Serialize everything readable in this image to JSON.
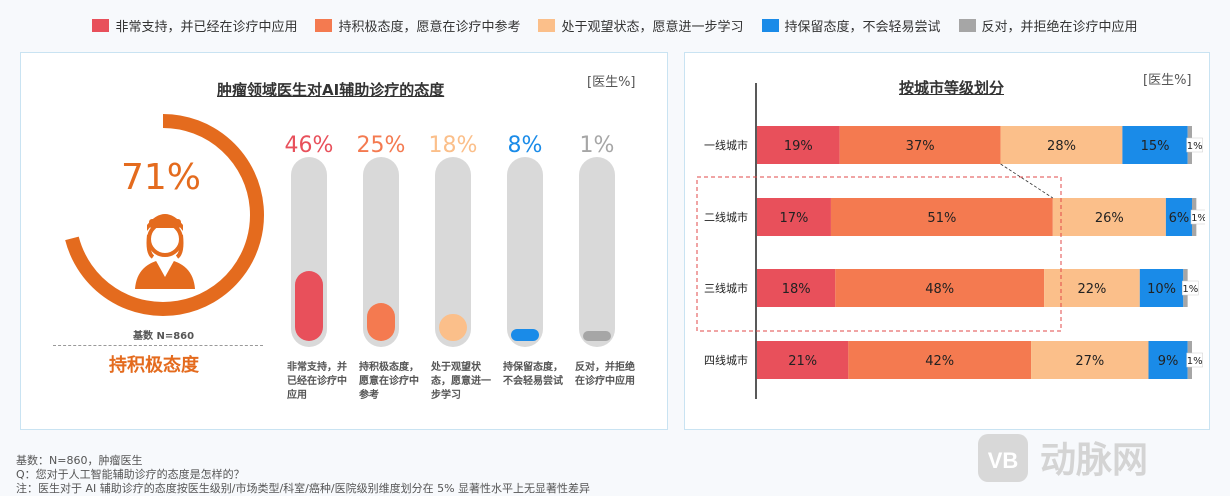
{
  "legend": [
    {
      "label": "非常支持，并已经在诊疗中应用",
      "color": "#e8505b"
    },
    {
      "label": "持积极态度，愿意在诊疗中参考",
      "color": "#f47a50"
    },
    {
      "label": "处于观望状态，愿意进一步学习",
      "color": "#fbbf8a"
    },
    {
      "label": "持保留态度，不会轻易尝试",
      "color": "#1a8be8"
    },
    {
      "label": "反对，并拒绝在诊疗中应用",
      "color": "#a6a6a6"
    }
  ],
  "left_panel": {
    "title": "肿瘤领域医生对AI辅助诊疗的态度",
    "unit": "[医生%]",
    "donut_value": "71%",
    "donut_fraction": 0.71,
    "base": "基数 N=860",
    "donut_label": "持积极态度"
  },
  "right_panel": {
    "title": "按城市等级划分",
    "unit": "[医生%]"
  },
  "chart_data": [
    {
      "type": "bar",
      "title": "肿瘤领域医生对AI辅助诊疗的态度",
      "categories": [
        "非常支持，并已经在诊疗中应用",
        "持积极态度，愿意在诊疗中参考",
        "处于观望状态，愿意进一步学习",
        "持保留态度，不会轻易尝试",
        "反对，并拒绝在诊疗中应用"
      ],
      "values": [
        46,
        25,
        18,
        8,
        1
      ],
      "value_labels": [
        "46%",
        "25%",
        "18%",
        "8%",
        "1%"
      ],
      "colors": [
        "#e8505b",
        "#f47a50",
        "#fbbf8a",
        "#1a8be8",
        "#a6a6a6"
      ],
      "ylim": [
        0,
        100
      ]
    },
    {
      "type": "bar",
      "stacked": true,
      "orientation": "horizontal",
      "title": "按城市等级划分",
      "categories": [
        "一线城市",
        "二线城市",
        "三线城市",
        "四线城市"
      ],
      "series": [
        {
          "name": "非常支持，并已经在诊疗中应用",
          "color": "#e8505b",
          "values": [
            19,
            17,
            18,
            21
          ]
        },
        {
          "name": "持积极态度，愿意在诊疗中参考",
          "color": "#f47a50",
          "values": [
            37,
            51,
            48,
            42
          ]
        },
        {
          "name": "处于观望状态，愿意进一步学习",
          "color": "#fbbf8a",
          "values": [
            28,
            26,
            22,
            27
          ]
        },
        {
          "name": "持保留态度，不会轻易尝试",
          "color": "#1a8be8",
          "values": [
            15,
            6,
            10,
            9
          ]
        },
        {
          "name": "反对，并拒绝在诊疗中应用",
          "color": "#a6a6a6",
          "values": [
            1,
            1,
            1,
            1
          ]
        }
      ],
      "xlim": [
        0,
        100
      ]
    }
  ],
  "footer": {
    "line1": "基数：N=860，肿瘤医生",
    "line2": "Q：您对于人工智能辅助诊疗的态度是怎样的？",
    "line3": "注：医生对于 AI 辅助诊疗的态度按医生级别/市场类型/科室/癌种/医院级别维度划分在 5% 显著性水平上无显著性差异"
  },
  "watermark": "动脉网"
}
